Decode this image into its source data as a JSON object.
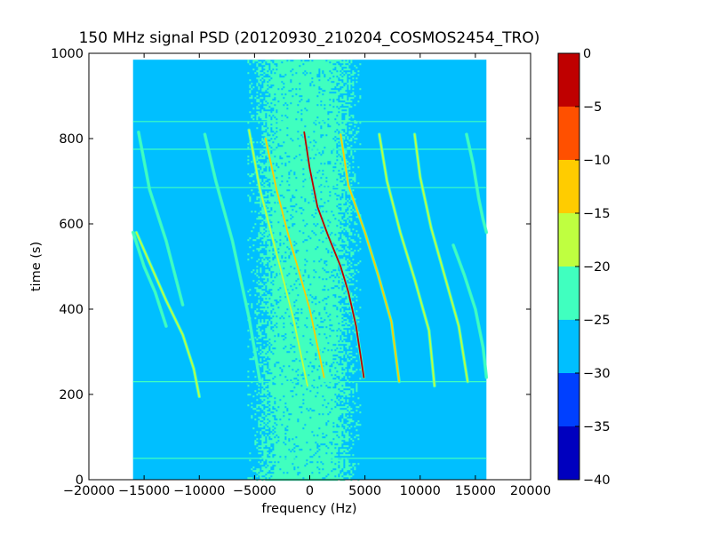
{
  "chart_data": {
    "type": "heatmap",
    "title": "150 MHz signal PSD (20120930_210204_COSMOS2454_TRO)",
    "xlabel": "frequency (Hz)",
    "ylabel": "time (s)",
    "xlim": [
      -20000,
      20000
    ],
    "ylim": [
      0,
      1000
    ],
    "x_ticks": [
      -20000,
      -15000,
      -10000,
      -5000,
      0,
      5000,
      10000,
      15000,
      20000
    ],
    "x_tick_labels": [
      "−20000",
      "−15000",
      "−10000",
      "−5000",
      "0",
      "5000",
      "10000",
      "15000",
      "20000"
    ],
    "y_ticks": [
      0,
      200,
      400,
      600,
      800,
      1000
    ],
    "y_tick_labels": [
      "0",
      "200",
      "400",
      "600",
      "800",
      "1000"
    ],
    "data_extent": {
      "x": [
        -16000,
        16000
      ],
      "y": [
        0,
        985
      ]
    },
    "noise_floor_level": -27.5,
    "central_band": {
      "x": [
        -5000,
        4000
      ],
      "level": -22.5
    },
    "horizontal_lines": [
      {
        "y": 50,
        "level": -22.5
      },
      {
        "y": 230,
        "level": -22.5
      },
      {
        "y": 685,
        "level": -22.5
      },
      {
        "y": 775,
        "level": -22.5
      },
      {
        "y": 840,
        "level": -22.5
      }
    ],
    "doppler_traces": [
      {
        "x": [
          -15700,
          -13000,
          -11500,
          -10500,
          -10000
        ],
        "y": [
          580,
          420,
          340,
          260,
          195
        ],
        "level": -17.5
      },
      {
        "x": [
          -16000,
          -15000,
          -14000,
          -13000
        ],
        "y": [
          580,
          500,
          440,
          360
        ],
        "level": -22.5
      },
      {
        "x": [
          -15500,
          -14500,
          -13000,
          -11500
        ],
        "y": [
          815,
          680,
          560,
          410
        ],
        "level": -22.5
      },
      {
        "x": [
          -9500,
          -8500,
          -7000,
          -5500,
          -4500
        ],
        "y": [
          810,
          700,
          560,
          380,
          230
        ],
        "level": -22.5
      },
      {
        "x": [
          -5500,
          -4500,
          -3500,
          -2500,
          -1500,
          -200
        ],
        "y": [
          820,
          680,
          580,
          480,
          380,
          220
        ],
        "level": -17.5
      },
      {
        "x": [
          -4000,
          -3000,
          -2000,
          -1000,
          0,
          1300
        ],
        "y": [
          800,
          680,
          580,
          490,
          400,
          240
        ],
        "level": -12.5
      },
      {
        "x": [
          -500,
          0,
          700,
          1700,
          2800,
          3500,
          4200,
          4900
        ],
        "y": [
          815,
          730,
          640,
          570,
          500,
          440,
          360,
          240
        ],
        "level": -2.5
      },
      {
        "x": [
          2800,
          3500,
          5000,
          6200,
          7400,
          8100
        ],
        "y": [
          810,
          690,
          580,
          480,
          370,
          230
        ],
        "level": -12.5
      },
      {
        "x": [
          6300,
          7000,
          8200,
          9500,
          10800,
          11300
        ],
        "y": [
          810,
          700,
          580,
          470,
          350,
          220
        ],
        "level": -17.5
      },
      {
        "x": [
          9500,
          10000,
          11000,
          12200,
          13500,
          14300
        ],
        "y": [
          810,
          710,
          590,
          480,
          360,
          230
        ],
        "level": -17.5
      },
      {
        "x": [
          14200,
          14800,
          15300,
          15700,
          16000
        ],
        "y": [
          810,
          740,
          660,
          610,
          580
        ],
        "level": -22.5
      },
      {
        "x": [
          13000,
          14000,
          15000,
          15700,
          16000
        ],
        "y": [
          550,
          480,
          400,
          310,
          240
        ],
        "level": -22.5
      }
    ],
    "colorbar": {
      "range": [
        -40,
        0
      ],
      "boundaries": [
        -40,
        -35,
        -30,
        -25,
        -20,
        -15,
        -10,
        -5,
        0
      ],
      "colors": [
        "#0000bf",
        "#0040ff",
        "#00bfff",
        "#40ffbf",
        "#bfff40",
        "#ffcc00",
        "#ff5000",
        "#bf0000"
      ],
      "tick_labels": [
        "−40",
        "−35",
        "−30",
        "−25",
        "−20",
        "−15",
        "−10",
        "−5",
        "0"
      ]
    },
    "grid": false,
    "legend": "none"
  }
}
